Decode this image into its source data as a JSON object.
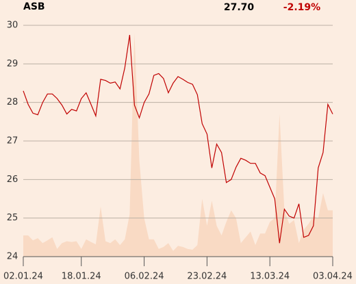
{
  "chart_data": {
    "type": "line",
    "title": "ASB",
    "price": "27.70",
    "change": "-2.19%",
    "categories": [
      "02.01.24",
      null,
      null,
      null,
      null,
      null,
      null,
      null,
      null,
      null,
      null,
      null,
      "18.01.24",
      null,
      null,
      null,
      null,
      null,
      null,
      null,
      null,
      null,
      null,
      null,
      null,
      "06.02.24",
      null,
      null,
      null,
      null,
      null,
      null,
      null,
      null,
      null,
      null,
      null,
      null,
      "23.02.24",
      null,
      null,
      null,
      null,
      null,
      null,
      null,
      null,
      null,
      null,
      null,
      null,
      "13.03.24",
      null,
      null,
      null,
      null,
      null,
      null,
      null,
      null,
      null,
      null,
      null,
      null,
      "03.04.24"
    ],
    "series": [
      {
        "style": "area",
        "color": "#f9dac4",
        "values": [
          24.55,
          24.55,
          24.42,
          24.48,
          24.35,
          24.42,
          24.5,
          24.2,
          24.35,
          24.4,
          24.38,
          24.4,
          24.2,
          24.45,
          24.38,
          24.32,
          25.3,
          24.4,
          24.35,
          24.45,
          24.3,
          24.45,
          25.1,
          29.8,
          26.5,
          25.0,
          24.45,
          24.45,
          24.2,
          24.25,
          24.35,
          24.15,
          24.28,
          24.25,
          24.2,
          24.18,
          24.3,
          25.5,
          24.8,
          25.45,
          24.8,
          24.55,
          24.9,
          25.2,
          25.0,
          24.35,
          24.5,
          24.65,
          24.3,
          24.6,
          24.6,
          24.9,
          25.0,
          27.7,
          25.2,
          24.85,
          24.95,
          24.35,
          24.7,
          24.85,
          25.05,
          25.0,
          25.65,
          25.2,
          25.2
        ]
      },
      {
        "style": "line",
        "color": "#c00000",
        "values": [
          28.3,
          27.95,
          27.72,
          27.68,
          28.0,
          28.22,
          28.22,
          28.1,
          27.93,
          27.7,
          27.82,
          27.78,
          28.1,
          28.25,
          27.95,
          27.65,
          28.6,
          28.57,
          28.5,
          28.53,
          28.35,
          28.9,
          29.75,
          27.93,
          27.6,
          28.0,
          28.22,
          28.7,
          28.75,
          28.62,
          28.25,
          28.5,
          28.67,
          28.6,
          28.52,
          28.47,
          28.2,
          27.45,
          27.18,
          26.3,
          26.92,
          26.7,
          25.92,
          26.0,
          26.32,
          26.55,
          26.5,
          26.42,
          26.42,
          26.17,
          26.1,
          25.8,
          25.5,
          24.35,
          25.23,
          25.05,
          25.0,
          25.37,
          24.5,
          24.55,
          24.8,
          26.3,
          26.7,
          27.95,
          27.7
        ]
      }
    ],
    "ylim": [
      24,
      30
    ],
    "yticks": [
      24,
      25,
      26,
      27,
      28,
      29,
      30
    ],
    "grid": true,
    "background": "#fcede1",
    "change_color": "#c00000"
  }
}
